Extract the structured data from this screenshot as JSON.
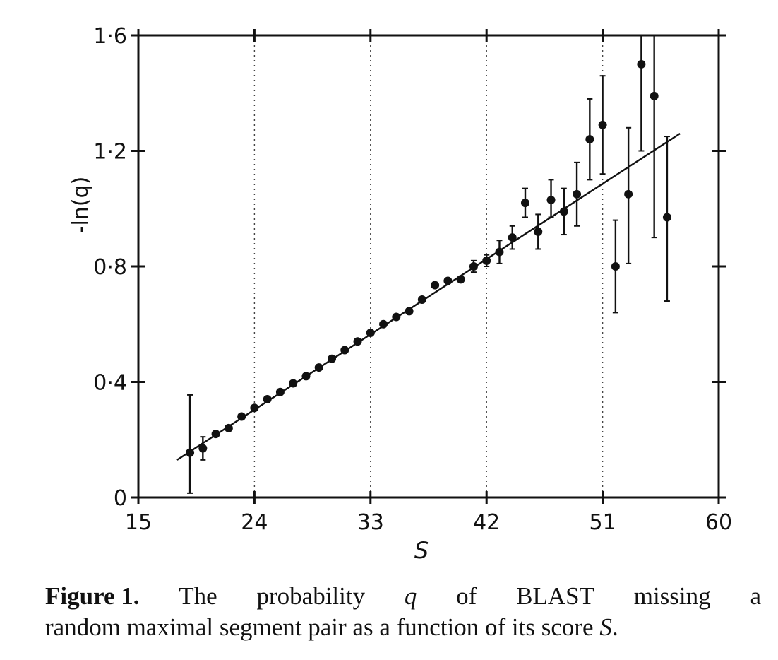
{
  "chart_data": {
    "type": "scatter",
    "title": "",
    "xlabel": "S",
    "ylabel": "-ln(q)",
    "xlim": [
      15,
      60
    ],
    "ylim": [
      0,
      1.6
    ],
    "xticks": [
      15,
      24,
      33,
      42,
      51,
      60
    ],
    "xtick_labels": [
      "15",
      "24",
      "33",
      "42",
      "51",
      "60"
    ],
    "yticks": [
      0,
      0.4,
      0.8,
      1.2,
      1.6
    ],
    "ytick_labels": [
      "0",
      "0·4",
      "0·8",
      "1·2",
      "1·6"
    ],
    "grid": "dotted vertical lines at x ticks",
    "legend": "none",
    "series": [
      {
        "x": [
          19,
          20,
          21,
          22,
          23,
          24,
          25,
          26,
          27,
          28,
          29,
          30,
          31,
          32,
          33,
          34,
          35,
          36,
          37,
          38,
          39,
          40,
          41,
          42,
          43,
          44,
          45,
          46,
          47,
          48,
          49,
          50,
          51,
          52,
          53,
          54,
          55,
          56
        ],
        "y": [
          0.155,
          0.17,
          0.22,
          0.24,
          0.28,
          0.31,
          0.34,
          0.365,
          0.395,
          0.42,
          0.45,
          0.48,
          0.51,
          0.54,
          0.57,
          0.6,
          0.625,
          0.645,
          0.685,
          0.735,
          0.75,
          0.755,
          0.8,
          0.82,
          0.85,
          0.9,
          1.02,
          0.92,
          1.03,
          0.99,
          1.05,
          1.24,
          1.29,
          0.8,
          1.05,
          1.5,
          1.39,
          0.97
        ],
        "y_err_low": [
          0.14,
          0.04,
          0,
          0,
          0,
          0,
          0,
          0,
          0,
          0,
          0,
          0,
          0,
          0,
          0,
          0,
          0,
          0,
          0,
          0,
          0,
          0,
          0.02,
          0.02,
          0.04,
          0.04,
          0.05,
          0.06,
          0.06,
          0.08,
          0.11,
          0.14,
          0.17,
          0.16,
          0.24,
          0.3,
          0.49,
          0.29
        ],
        "y_err_high": [
          0.2,
          0.04,
          0,
          0,
          0,
          0,
          0,
          0,
          0,
          0,
          0,
          0,
          0,
          0,
          0,
          0,
          0,
          0,
          0,
          0,
          0,
          0,
          0.02,
          0.02,
          0.04,
          0.04,
          0.05,
          0.06,
          0.07,
          0.08,
          0.11,
          0.14,
          0.17,
          0.16,
          0.23,
          0.1,
          0.21,
          0.28
        ]
      }
    ],
    "fit_line": {
      "x": [
        18,
        57
      ],
      "y": [
        0.13,
        1.26
      ]
    }
  },
  "caption": {
    "figure_label": "Figure 1.",
    "line1_words": [
      "The",
      "probability",
      "q",
      "of",
      "BLAST",
      "missing",
      "a"
    ],
    "line2_text": "random maximal segment pair as a function of its score ",
    "line2_var": "S",
    "line2_end": "."
  }
}
